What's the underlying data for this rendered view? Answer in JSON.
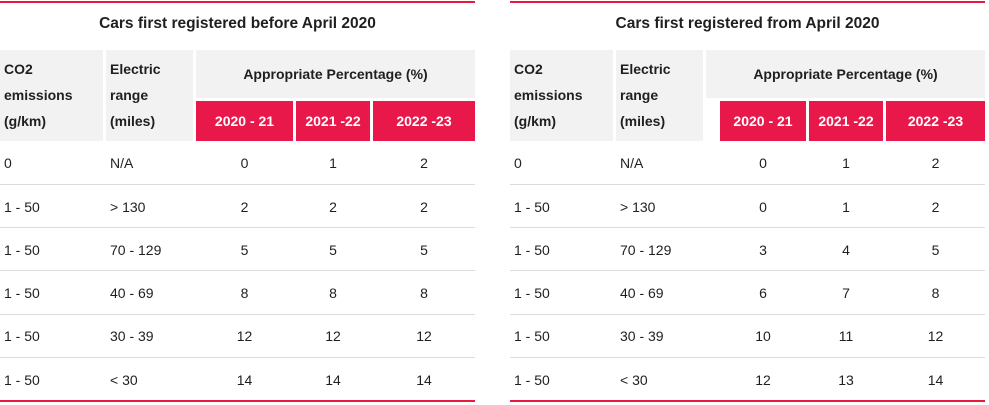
{
  "panels": [
    {
      "title": "Cars first registered before April 2020",
      "headers": {
        "co2_lines": [
          "CO2",
          "emissions",
          "(g/km)"
        ],
        "range_lines": [
          "Electric",
          "range",
          "(miles)"
        ],
        "percent": "Appropriate Percentage (%)",
        "years": [
          "2020 - 21",
          "2021 -22",
          "2022 -23"
        ]
      },
      "rows": [
        {
          "co2": "0",
          "range": "N/A",
          "values": [
            "0",
            "1",
            "2"
          ]
        },
        {
          "co2": "1 - 50",
          "range": "> 130",
          "values": [
            "2",
            "2",
            "2"
          ]
        },
        {
          "co2": "1 - 50",
          "range": "70 - 129",
          "values": [
            "5",
            "5",
            "5"
          ]
        },
        {
          "co2": "1 - 50",
          "range": "40 - 69",
          "values": [
            "8",
            "8",
            "8"
          ]
        },
        {
          "co2": "1 - 50",
          "range": "30 - 39",
          "values": [
            "12",
            "12",
            "12"
          ]
        },
        {
          "co2": "1 - 50",
          "range": "< 30",
          "values": [
            "14",
            "14",
            "14"
          ]
        }
      ]
    },
    {
      "title": "Cars first registered from April 2020",
      "headers": {
        "co2_lines": [
          "CO2",
          "emissions",
          "(g/km)"
        ],
        "range_lines": [
          "Electric",
          "range",
          "(miles)"
        ],
        "percent": "Appropriate Percentage (%)",
        "years": [
          "2020 - 21",
          "2021 -22",
          "2022 -23"
        ]
      },
      "rows": [
        {
          "co2": "0",
          "range": "N/A",
          "values": [
            "0",
            "1",
            "2"
          ]
        },
        {
          "co2": "1 - 50",
          "range": "> 130",
          "values": [
            "0",
            "1",
            "2"
          ]
        },
        {
          "co2": "1 - 50",
          "range": "70 - 129",
          "values": [
            "3",
            "4",
            "5"
          ]
        },
        {
          "co2": "1 - 50",
          "range": "40 - 69",
          "values": [
            "6",
            "7",
            "8"
          ]
        },
        {
          "co2": "1 - 50",
          "range": "30 - 39",
          "values": [
            "10",
            "11",
            "12"
          ]
        },
        {
          "co2": "1 - 50",
          "range": "< 30",
          "values": [
            "12",
            "13",
            "14"
          ]
        }
      ]
    }
  ],
  "colors": {
    "accent": "#e8194a",
    "header_bg": "#f2f2f2",
    "row_divider": "#dcdcdc",
    "text": "#1f1f1f"
  }
}
